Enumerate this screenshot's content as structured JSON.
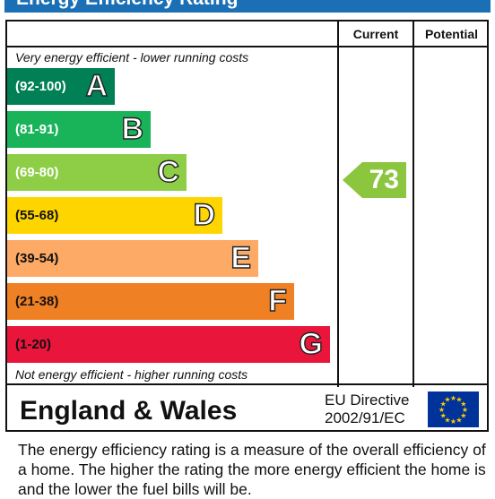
{
  "title": "Energy Efficiency Rating",
  "columns": {
    "current": "Current",
    "potential": "Potential"
  },
  "top_caption": "Very energy efficient - lower running costs",
  "bottom_caption": "Not energy efficient - higher running costs",
  "bands": [
    {
      "range": "(92-100)",
      "letter": "A",
      "color": "#008054"
    },
    {
      "range": "(81-91)",
      "letter": "B",
      "color": "#19b459"
    },
    {
      "range": "(69-80)",
      "letter": "C",
      "color": "#8dce46"
    },
    {
      "range": "(55-68)",
      "letter": "D",
      "color": "#ffd500"
    },
    {
      "range": "(39-54)",
      "letter": "E",
      "color": "#fcaa65"
    },
    {
      "range": "(21-38)",
      "letter": "F",
      "color": "#ef8023"
    },
    {
      "range": "(1-20)",
      "letter": "G",
      "color": "#e9153b"
    }
  ],
  "current_rating": {
    "value": "73",
    "band": "C",
    "color": "#8cc63f"
  },
  "potential_rating": null,
  "region": "England & Wales",
  "directive": {
    "line1": "EU Directive",
    "line2": "2002/91/EC"
  },
  "eu_flag_icon": "eu-flag-icon",
  "description": "The energy efficiency rating is a measure of the overall efficiency of a home.  The higher the rating the more energy efficient the home is and the lower the fuel bills will be."
}
